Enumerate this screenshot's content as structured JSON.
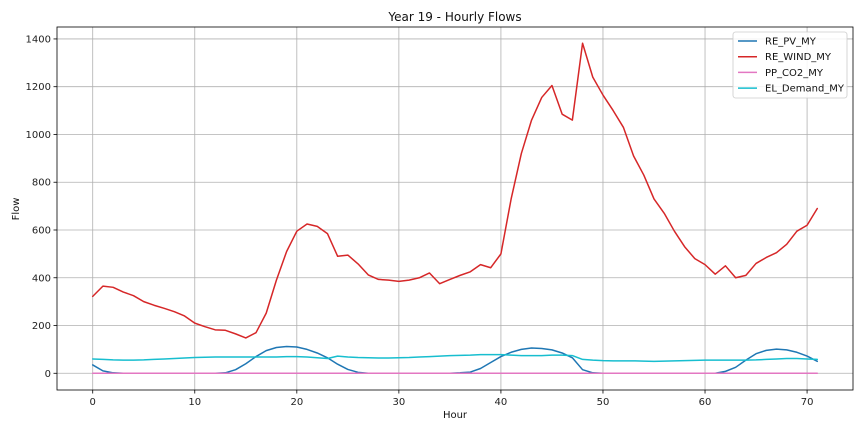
{
  "chart_data": {
    "type": "line",
    "title": "Year 19 - Hourly Flows",
    "xlabel": "Hour",
    "ylabel": "Flow",
    "xlim": [
      -3.5,
      74.5
    ],
    "ylim": [
      -70,
      1450
    ],
    "xticks": [
      0,
      10,
      20,
      30,
      40,
      50,
      60,
      70
    ],
    "yticks": [
      0,
      200,
      400,
      600,
      800,
      1000,
      1200,
      1400
    ],
    "grid": true,
    "legend_position": "top-right",
    "series": [
      {
        "name": "RE_PV_MY",
        "color": "#1f77b4",
        "x": [
          0,
          1,
          2,
          3,
          4,
          5,
          6,
          7,
          8,
          9,
          10,
          11,
          12,
          13,
          14,
          15,
          16,
          17,
          18,
          19,
          20,
          21,
          22,
          23,
          24,
          25,
          26,
          27,
          28,
          29,
          30,
          31,
          32,
          33,
          34,
          35,
          36,
          37,
          38,
          39,
          40,
          41,
          42,
          43,
          44,
          45,
          46,
          47,
          48,
          49,
          50,
          51,
          52,
          53,
          54,
          55,
          56,
          57,
          58,
          59,
          60,
          61,
          62,
          63,
          64,
          65,
          66,
          67,
          68,
          69,
          70,
          71
        ],
        "values": [
          35,
          10,
          2,
          0,
          0,
          0,
          0,
          0,
          0,
          0,
          0,
          0,
          0,
          2,
          15,
          40,
          70,
          95,
          108,
          112,
          110,
          100,
          85,
          65,
          38,
          16,
          4,
          0,
          0,
          0,
          0,
          0,
          0,
          0,
          0,
          0,
          2,
          5,
          20,
          45,
          70,
          88,
          100,
          106,
          104,
          98,
          85,
          65,
          15,
          2,
          0,
          0,
          0,
          0,
          0,
          0,
          0,
          0,
          0,
          0,
          0,
          0,
          8,
          25,
          55,
          82,
          96,
          101,
          98,
          88,
          72,
          50
        ]
      },
      {
        "name": "RE_WIND_MY",
        "color": "#d62728",
        "x": [
          0,
          1,
          2,
          3,
          4,
          5,
          6,
          7,
          8,
          9,
          10,
          11,
          12,
          13,
          14,
          15,
          16,
          17,
          18,
          19,
          20,
          21,
          22,
          23,
          24,
          25,
          26,
          27,
          28,
          29,
          30,
          31,
          32,
          33,
          34,
          35,
          36,
          37,
          38,
          39,
          40,
          41,
          42,
          43,
          44,
          45,
          46,
          47,
          48,
          49,
          50,
          51,
          52,
          53,
          54,
          55,
          56,
          57,
          58,
          59,
          60,
          61,
          62,
          63,
          64,
          65,
          66,
          67,
          68,
          69,
          70,
          71
        ],
        "values": [
          322,
          365,
          360,
          340,
          325,
          300,
          285,
          272,
          258,
          240,
          210,
          195,
          182,
          180,
          165,
          148,
          170,
          252,
          390,
          510,
          595,
          625,
          615,
          585,
          490,
          495,
          458,
          412,
          393,
          390,
          385,
          390,
          400,
          420,
          375,
          393,
          410,
          425,
          455,
          442,
          500,
          730,
          920,
          1060,
          1155,
          1205,
          1085,
          1060,
          1382,
          1240,
          1165,
          1100,
          1030,
          910,
          830,
          730,
          670,
          595,
          530,
          480,
          455,
          415,
          450,
          400,
          410,
          460,
          485,
          505,
          540,
          595,
          620,
          690
        ]
      },
      {
        "name": "PP_CO2_MY",
        "color": "#e377c2",
        "x": [
          0,
          71
        ],
        "values": [
          0,
          0
        ]
      },
      {
        "name": "EL_Demand_MY",
        "color": "#17becf",
        "x": [
          0,
          1,
          2,
          3,
          4,
          5,
          6,
          7,
          8,
          9,
          10,
          11,
          12,
          13,
          14,
          15,
          16,
          17,
          18,
          19,
          20,
          21,
          22,
          23,
          24,
          25,
          26,
          27,
          28,
          29,
          30,
          31,
          32,
          33,
          34,
          35,
          36,
          37,
          38,
          39,
          40,
          41,
          42,
          43,
          44,
          45,
          46,
          47,
          48,
          49,
          50,
          51,
          52,
          53,
          54,
          55,
          56,
          57,
          58,
          59,
          60,
          61,
          62,
          63,
          64,
          65,
          66,
          67,
          68,
          69,
          70,
          71
        ],
        "values": [
          60,
          58,
          56,
          55,
          55,
          56,
          58,
          60,
          62,
          64,
          66,
          67,
          68,
          68,
          68,
          68,
          68,
          68,
          68,
          70,
          70,
          68,
          65,
          62,
          72,
          68,
          66,
          65,
          64,
          64,
          65,
          66,
          68,
          70,
          72,
          74,
          75,
          76,
          78,
          78,
          78,
          76,
          74,
          74,
          74,
          76,
          76,
          74,
          58,
          55,
          53,
          52,
          52,
          52,
          51,
          50,
          51,
          52,
          53,
          54,
          55,
          55,
          55,
          55,
          55,
          56,
          58,
          60,
          62,
          62,
          60,
          58
        ]
      }
    ]
  }
}
